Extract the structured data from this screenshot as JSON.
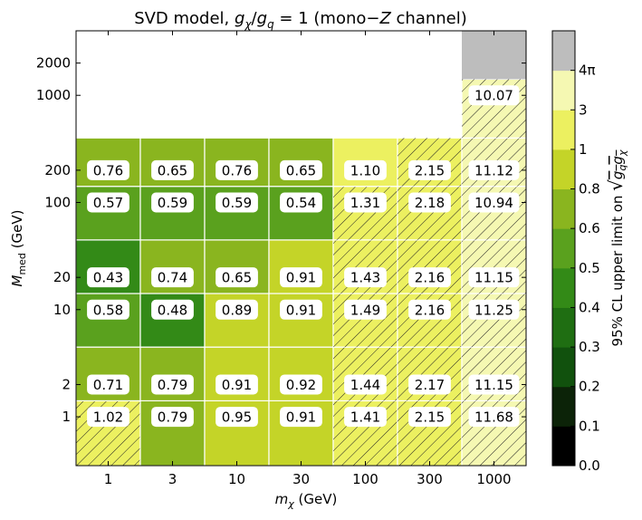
{
  "chart_data": {
    "type": "heatmap",
    "title": "SVD model, gχ/gq = 1 (mono−Z channel)",
    "title_parts": {
      "prefix": "SVD model, ",
      "g1": "g",
      "g1_sub": "χ",
      "slash": "/",
      "g2": "g",
      "g2_sub": "q",
      "suffix": " = 1 (mono−",
      "z": "Z",
      "end": " channel)"
    },
    "xlabel": "mχ (GeV)",
    "xlabel_parts": {
      "m": "m",
      "sub": "χ",
      "unit": " (GeV)"
    },
    "ylabel": "Mmed (GeV)",
    "ylabel_parts": {
      "m": "M",
      "sub": "med",
      "unit": " (GeV)"
    },
    "x_categories": [
      "1",
      "3",
      "10",
      "30",
      "100",
      "300",
      "1000"
    ],
    "y_tick_labels": [
      "1",
      "2",
      "10",
      "20",
      "100",
      "200",
      "1000",
      "2000"
    ],
    "cells": [
      {
        "x": "1",
        "y": "1",
        "value": 1.02
      },
      {
        "x": "1",
        "y": "2",
        "value": 0.71
      },
      {
        "x": "1",
        "y": "10",
        "value": 0.58
      },
      {
        "x": "1",
        "y": "20",
        "value": 0.43
      },
      {
        "x": "1",
        "y": "100",
        "value": 0.57
      },
      {
        "x": "1",
        "y": "200",
        "value": 0.76
      },
      {
        "x": "3",
        "y": "1",
        "value": 0.79
      },
      {
        "x": "3",
        "y": "2",
        "value": 0.79
      },
      {
        "x": "3",
        "y": "10",
        "value": 0.48
      },
      {
        "x": "3",
        "y": "20",
        "value": 0.74
      },
      {
        "x": "3",
        "y": "100",
        "value": 0.59
      },
      {
        "x": "3",
        "y": "200",
        "value": 0.65
      },
      {
        "x": "10",
        "y": "1",
        "value": 0.95
      },
      {
        "x": "10",
        "y": "2",
        "value": 0.91
      },
      {
        "x": "10",
        "y": "10",
        "value": 0.89
      },
      {
        "x": "10",
        "y": "20",
        "value": 0.65
      },
      {
        "x": "10",
        "y": "100",
        "value": 0.59
      },
      {
        "x": "10",
        "y": "200",
        "value": 0.76
      },
      {
        "x": "30",
        "y": "1",
        "value": 0.91
      },
      {
        "x": "30",
        "y": "2",
        "value": 0.92
      },
      {
        "x": "30",
        "y": "10",
        "value": 0.91
      },
      {
        "x": "30",
        "y": "20",
        "value": 0.91
      },
      {
        "x": "30",
        "y": "100",
        "value": 0.54
      },
      {
        "x": "30",
        "y": "200",
        "value": 0.65
      },
      {
        "x": "100",
        "y": "1",
        "value": 1.41
      },
      {
        "x": "100",
        "y": "2",
        "value": 1.44
      },
      {
        "x": "100",
        "y": "10",
        "value": 1.49
      },
      {
        "x": "100",
        "y": "20",
        "value": 1.43
      },
      {
        "x": "100",
        "y": "100",
        "value": 1.31
      },
      {
        "x": "100",
        "y": "200",
        "value": 1.1
      },
      {
        "x": "300",
        "y": "1",
        "value": 2.15
      },
      {
        "x": "300",
        "y": "2",
        "value": 2.17
      },
      {
        "x": "300",
        "y": "10",
        "value": 2.16
      },
      {
        "x": "300",
        "y": "20",
        "value": 2.16
      },
      {
        "x": "300",
        "y": "100",
        "value": 2.18
      },
      {
        "x": "300",
        "y": "200",
        "value": 2.15
      },
      {
        "x": "1000",
        "y": "1",
        "value": 11.68
      },
      {
        "x": "1000",
        "y": "2",
        "value": 11.15
      },
      {
        "x": "1000",
        "y": "10",
        "value": 11.25
      },
      {
        "x": "1000",
        "y": "20",
        "value": 11.15
      },
      {
        "x": "1000",
        "y": "100",
        "value": 10.94
      },
      {
        "x": "1000",
        "y": "200",
        "value": 11.12
      },
      {
        "x": "1000",
        "y": "1000",
        "value": 10.07
      }
    ],
    "out_of_range_cells": [
      {
        "x": "1000",
        "y": "2000"
      }
    ],
    "hatched_if_value_above": 1,
    "colorbar": {
      "label": "95% CL upper limit on √(gq gχ)",
      "label_prefix": "95% CL upper limit on ",
      "tick_labels": [
        "0.0",
        "0.1",
        "0.2",
        "0.3",
        "0.4",
        "0.5",
        "0.6",
        "0.8",
        "1",
        "3",
        "4π"
      ],
      "boundaries": [
        0,
        0.1,
        0.2,
        0.3,
        0.4,
        0.5,
        0.6,
        0.8,
        1,
        3,
        12.566
      ],
      "colors": [
        "#000000",
        "#0c2308",
        "#11510d",
        "#1f6e12",
        "#338a17",
        "#5aa11e",
        "#8ab51f",
        "#c4d428",
        "#ecf060",
        "#f5f8b2",
        "#bdbdbd"
      ],
      "over_color": "#bdbdbd"
    }
  }
}
